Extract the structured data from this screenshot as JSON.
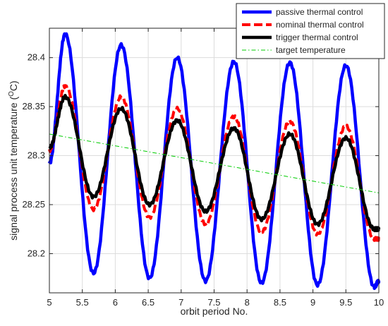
{
  "chart_data": {
    "type": "line",
    "title": "",
    "xlabel": "orbit period No.",
    "ylabel_main": "signal process unit temperature (",
    "ylabel_sup": "O",
    "ylabel_tail": "C)",
    "xlim": [
      5,
      10
    ],
    "ylim": [
      28.16,
      28.43
    ],
    "xticks": [
      5,
      5.5,
      6,
      6.5,
      7,
      7.5,
      8,
      8.5,
      9,
      9.5,
      10
    ],
    "xtick_labels": [
      "5",
      "5.5",
      "6",
      "6.5",
      "7",
      "7.5",
      "8",
      "8.5",
      "9",
      "9.5",
      "10"
    ],
    "yticks": [
      28.2,
      28.25,
      28.3,
      28.35,
      28.4
    ],
    "ytick_labels": [
      "28.2",
      "28.25",
      "28.3",
      "28.35",
      "28.4"
    ],
    "grid": true,
    "legend_position": "top-right",
    "series": [
      {
        "name": "passive thermal control",
        "color": "#0000ff",
        "style": "solid",
        "peaks": [
          [
            5.24,
            28.424
          ],
          [
            6.09,
            28.413
          ],
          [
            6.94,
            28.4
          ],
          [
            7.8,
            28.396
          ],
          [
            8.65,
            28.395
          ],
          [
            9.5,
            28.392
          ]
        ],
        "troughs": [
          [
            5.67,
            28.18
          ],
          [
            6.52,
            28.175
          ],
          [
            7.37,
            28.172
          ],
          [
            8.22,
            28.17
          ],
          [
            9.07,
            28.168
          ],
          [
            9.93,
            28.166
          ]
        ],
        "start": [
          5.0,
          28.292
        ],
        "end": [
          10.0,
          28.172
        ]
      },
      {
        "name": "nominal thermal control",
        "color": "#ff0000",
        "style": "dashed",
        "peaks": [
          [
            5.24,
            28.371
          ],
          [
            6.09,
            28.36
          ],
          [
            6.94,
            28.348
          ],
          [
            7.8,
            28.34
          ],
          [
            8.65,
            28.335
          ],
          [
            9.5,
            28.33
          ]
        ],
        "troughs": [
          [
            5.67,
            28.245
          ],
          [
            6.52,
            28.237
          ],
          [
            7.37,
            28.23
          ],
          [
            8.22,
            28.222
          ],
          [
            9.07,
            28.22
          ],
          [
            9.93,
            28.215
          ]
        ],
        "start": [
          5.0,
          28.305
        ],
        "end": [
          10.0,
          28.215
        ]
      },
      {
        "name": "trigger thermal control",
        "color": "#000000",
        "style": "solid",
        "peaks": [
          [
            5.24,
            28.36
          ],
          [
            6.09,
            28.348
          ],
          [
            6.94,
            28.336
          ],
          [
            7.8,
            28.328
          ],
          [
            8.65,
            28.322
          ],
          [
            9.5,
            28.318
          ]
        ],
        "troughs": [
          [
            5.67,
            28.258
          ],
          [
            6.52,
            28.25
          ],
          [
            7.37,
            28.243
          ],
          [
            8.22,
            28.235
          ],
          [
            9.07,
            28.23
          ],
          [
            9.93,
            28.225
          ]
        ],
        "start": [
          5.0,
          28.308
        ],
        "end": [
          10.0,
          28.225
        ]
      },
      {
        "name": "target temperature",
        "color": "#00cc00",
        "style": "dashdot",
        "start": [
          5.0,
          28.322
        ],
        "end": [
          10.0,
          28.262
        ]
      }
    ]
  }
}
